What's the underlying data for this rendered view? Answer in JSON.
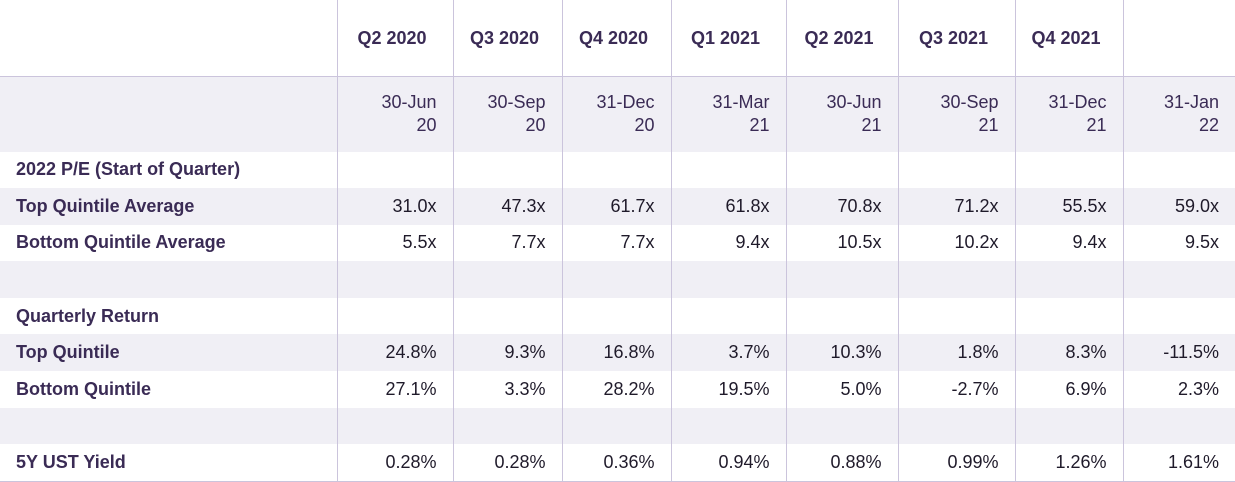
{
  "columns": [
    {
      "quarter": "Q2 2020",
      "date_line1": "30-Jun",
      "date_line2": "20"
    },
    {
      "quarter": "Q3 2020",
      "date_line1": "30-Sep",
      "date_line2": "20"
    },
    {
      "quarter": "Q4 2020",
      "date_line1": "31-Dec",
      "date_line2": "20"
    },
    {
      "quarter": "Q1 2021",
      "date_line1": "31-Mar",
      "date_line2": "21"
    },
    {
      "quarter": "Q2 2021",
      "date_line1": "30-Jun",
      "date_line2": "21"
    },
    {
      "quarter": "Q3 2021",
      "date_line1": "30-Sep",
      "date_line2": "21"
    },
    {
      "quarter": "Q4 2021",
      "date_line1": "31-Dec",
      "date_line2": "21"
    },
    {
      "quarter": "",
      "date_line1": "31-Jan",
      "date_line2": "22"
    }
  ],
  "rows": [
    {
      "label": "2022 P/E (Start of Quarter)",
      "values": [
        "",
        "",
        "",
        "",
        "",
        "",
        "",
        ""
      ]
    },
    {
      "label": "Top Quintile Average",
      "values": [
        "31.0x",
        "47.3x",
        "61.7x",
        "61.8x",
        "70.8x",
        "71.2x",
        "55.5x",
        "59.0x"
      ]
    },
    {
      "label": "Bottom Quintile Average",
      "values": [
        "5.5x",
        "7.7x",
        "7.7x",
        "9.4x",
        "10.5x",
        "10.2x",
        "9.4x",
        "9.5x"
      ]
    },
    {
      "label": "",
      "values": [
        "",
        "",
        "",
        "",
        "",
        "",
        "",
        ""
      ]
    },
    {
      "label": "Quarterly Return",
      "values": [
        "",
        "",
        "",
        "",
        "",
        "",
        "",
        ""
      ]
    },
    {
      "label": "Top Quintile",
      "values": [
        "24.8%",
        "9.3%",
        "16.8%",
        "3.7%",
        "10.3%",
        "1.8%",
        "8.3%",
        "-11.5%"
      ]
    },
    {
      "label": "Bottom Quintile",
      "values": [
        "27.1%",
        "3.3%",
        "28.2%",
        "19.5%",
        "5.0%",
        "-2.7%",
        "6.9%",
        "2.3%"
      ]
    },
    {
      "label": "",
      "values": [
        "",
        "",
        "",
        "",
        "",
        "",
        "",
        ""
      ]
    },
    {
      "label": "5Y UST Yield",
      "values": [
        "0.28%",
        "0.28%",
        "0.36%",
        "0.94%",
        "0.88%",
        "0.99%",
        "1.26%",
        "1.61%"
      ]
    }
  ]
}
